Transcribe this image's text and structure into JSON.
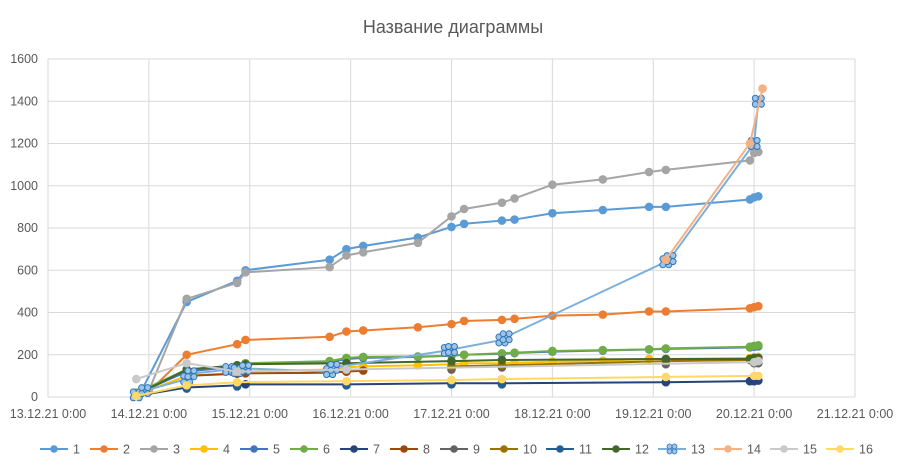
{
  "chart_data": {
    "type": "scatter",
    "title": "Название диаграммы",
    "xlabel": "",
    "ylabel": "",
    "xlim": [
      "13.12.21 0:00",
      "21.12.21 0:00"
    ],
    "ylim": [
      0,
      1600
    ],
    "x_ticks": [
      "13.12.21 0:00",
      "14.12.21 0:00",
      "15.12.21 0:00",
      "16.12.21 0:00",
      "17.12.21 0:00",
      "18.12.21 0:00",
      "19.12.21 0:00",
      "20.12.21 0:00",
      "21.12.21 0:00"
    ],
    "y_ticks": [
      0,
      200,
      400,
      600,
      800,
      1000,
      1200,
      1400,
      1600
    ],
    "grid": true,
    "legend_position": "bottom",
    "series": [
      {
        "name": "1",
        "color": "#5b9bd5",
        "marker": "circle",
        "line": true,
        "x": [
          "13.12.21 21:00",
          "13.12.21 22:00",
          "14.12.21 09:00",
          "14.12.21 21:00",
          "14.12.21 23:00",
          "15.12.21 19:00",
          "15.12.21 23:00",
          "16.12.21 03:00",
          "16.12.21 16:00",
          "17.12.21 00:00",
          "17.12.21 03:00",
          "17.12.21 12:00",
          "17.12.21 15:00",
          "18.12.21 00:00",
          "18.12.21 12:00",
          "18.12.21 23:00",
          "19.12.21 03:00",
          "19.12.21 23:00",
          "20.12.21 00:00",
          "20.12.21 01:00"
        ],
        "y": [
          15,
          20,
          450,
          550,
          600,
          650,
          700,
          715,
          755,
          805,
          820,
          835,
          840,
          870,
          885,
          900,
          900,
          935,
          945,
          950
        ]
      },
      {
        "name": "2",
        "color": "#ed7d31",
        "marker": "circle",
        "line": true,
        "x": [
          "13.12.21 21:00",
          "14.12.21 00:00",
          "14.12.21 09:00",
          "14.12.21 21:00",
          "14.12.21 23:00",
          "15.12.21 19:00",
          "15.12.21 23:00",
          "16.12.21 03:00",
          "16.12.21 16:00",
          "17.12.21 00:00",
          "17.12.21 03:00",
          "17.12.21 12:00",
          "17.12.21 15:00",
          "18.12.21 00:00",
          "18.12.21 12:00",
          "18.12.21 23:00",
          "19.12.21 03:00",
          "19.12.21 23:00",
          "20.12.21 00:00",
          "20.12.21 01:00"
        ],
        "y": [
          15,
          25,
          200,
          250,
          270,
          285,
          310,
          315,
          330,
          345,
          360,
          365,
          370,
          385,
          390,
          405,
          405,
          420,
          425,
          430
        ]
      },
      {
        "name": "3",
        "color": "#a5a5a5",
        "marker": "circle",
        "line": true,
        "x": [
          "13.12.21 21:00",
          "14.12.21 00:00",
          "14.12.21 09:00",
          "14.12.21 21:00",
          "14.12.21 23:00",
          "15.12.21 19:00",
          "15.12.21 23:00",
          "16.12.21 03:00",
          "16.12.21 16:00",
          "17.12.21 00:00",
          "17.12.21 03:00",
          "17.12.21 12:00",
          "17.12.21 15:00",
          "18.12.21 00:00",
          "18.12.21 12:00",
          "18.12.21 23:00",
          "19.12.21 03:00",
          "19.12.21 23:00",
          "20.12.21 00:00",
          "20.12.21 01:00"
        ],
        "y": [
          20,
          30,
          465,
          540,
          590,
          615,
          670,
          685,
          730,
          855,
          890,
          920,
          940,
          1005,
          1030,
          1065,
          1075,
          1120,
          1155,
          1160
        ]
      },
      {
        "name": "4",
        "color": "#ffc000",
        "marker": "circle",
        "line": true,
        "x": [
          "13.12.21 21:00",
          "14.12.21 09:00",
          "14.12.21 21:00",
          "14.12.21 23:00",
          "15.12.21 19:00",
          "15.12.21 23:00",
          "16.12.21 03:00",
          "16.12.21 16:00",
          "17.12.21 00:00",
          "17.12.21 03:00",
          "17.12.21 12:00",
          "17.12.21 15:00",
          "18.12.21 00:00",
          "18.12.21 12:00",
          "18.12.21 23:00",
          "19.12.21 03:00",
          "19.12.21 23:00",
          "20.12.21 00:00",
          "20.12.21 01:00"
        ],
        "y": [
          10,
          100,
          115,
          120,
          130,
          140,
          145,
          150,
          155,
          160,
          160,
          162,
          167,
          172,
          180,
          180,
          185,
          188,
          190
        ]
      },
      {
        "name": "5",
        "color": "#4472c4",
        "marker": "circle",
        "line": true,
        "x": [
          "13.12.21 21:00",
          "14.12.21 09:00",
          "14.12.21 21:00",
          "14.12.21 23:00",
          "15.12.21 19:00",
          "15.12.21 23:00",
          "16.12.21 03:00",
          "16.12.21 16:00",
          "17.12.21 00:00",
          "17.12.21 03:00",
          "17.12.21 12:00",
          "17.12.21 15:00",
          "18.12.21 00:00",
          "18.12.21 12:00",
          "18.12.21 23:00",
          "19.12.21 03:00",
          "19.12.21 23:00",
          "20.12.21 00:00",
          "20.12.21 01:00"
        ],
        "y": [
          15,
          120,
          145,
          155,
          165,
          180,
          185,
          190,
          195,
          200,
          205,
          208,
          215,
          220,
          225,
          228,
          235,
          238,
          240
        ]
      },
      {
        "name": "6",
        "color": "#70ad47",
        "marker": "circle",
        "line": true,
        "x": [
          "13.12.21 21:00",
          "14.12.21 09:00",
          "14.12.21 21:00",
          "14.12.21 23:00",
          "15.12.21 19:00",
          "15.12.21 23:00",
          "16.12.21 03:00",
          "16.12.21 16:00",
          "17.12.21 00:00",
          "17.12.21 03:00",
          "17.12.21 12:00",
          "17.12.21 15:00",
          "18.12.21 00:00",
          "18.12.21 12:00",
          "18.12.21 23:00",
          "19.12.21 03:00",
          "19.12.21 23:00",
          "20.12.21 00:00",
          "20.12.21 01:00"
        ],
        "y": [
          20,
          130,
          150,
          160,
          170,
          185,
          190,
          192,
          195,
          200,
          207,
          210,
          218,
          222,
          225,
          230,
          238,
          242,
          245
        ]
      },
      {
        "name": "7",
        "color": "#264478",
        "marker": "circle",
        "line": true,
        "x": [
          "13.12.21 21:00",
          "14.12.21 09:00",
          "14.12.21 21:00",
          "14.12.21 23:00",
          "15.12.21 23:00",
          "17.12.21 00:00",
          "17.12.21 12:00",
          "19.12.21 03:00",
          "19.12.21 23:00",
          "20.12.21 00:00",
          "20.12.21 01:00"
        ],
        "y": [
          5,
          45,
          55,
          60,
          60,
          65,
          65,
          70,
          75,
          75,
          78
        ]
      },
      {
        "name": "8",
        "color": "#9e480e",
        "marker": "circle",
        "line": true,
        "x": [
          "14.12.21 09:00",
          "14.12.21 21:00",
          "14.12.21 23:00",
          "15.12.21 19:00",
          "15.12.21 23:00",
          "16.12.21 03:00"
        ],
        "y": [
          100,
          110,
          112,
          115,
          120,
          125
        ]
      },
      {
        "name": "9",
        "color": "#636363",
        "marker": "circle",
        "line": false,
        "x": [
          "17.12.21 00:00",
          "17.12.21 12:00",
          "19.12.21 03:00",
          "20.12.21 00:00",
          "20.12.21 01:00"
        ],
        "y": [
          130,
          140,
          155,
          160,
          160
        ]
      },
      {
        "name": "10",
        "color": "#997300",
        "marker": "circle",
        "line": true,
        "x": [
          "17.12.21 00:00",
          "17.12.21 12:00",
          "19.12.21 03:00",
          "19.12.21 23:00",
          "20.12.21 00:00",
          "20.12.21 01:00"
        ],
        "y": [
          145,
          150,
          170,
          175,
          178,
          180
        ]
      },
      {
        "name": "11",
        "color": "#255e91",
        "marker": "circle",
        "line": false,
        "x": [
          "13.12.21 21:00",
          "14.12.21 09:00",
          "14.12.21 21:00",
          "15.12.21 23:00",
          "17.12.21 00:00",
          "17.12.21 12:00"
        ],
        "y": [
          5,
          40,
          50,
          55,
          60,
          60
        ]
      },
      {
        "name": "12",
        "color": "#43682b",
        "marker": "circle",
        "line": true,
        "x": [
          "13.12.21 21:00",
          "14.12.21 09:00",
          "14.12.21 21:00",
          "14.12.21 23:00",
          "15.12.21 23:00",
          "17.12.21 00:00",
          "17.12.21 12:00",
          "19.12.21 03:00",
          "19.12.21 23:00",
          "20.12.21 00:00",
          "20.12.21 01:00"
        ],
        "y": [
          10,
          130,
          150,
          155,
          160,
          170,
          175,
          180,
          180,
          185,
          185
        ]
      },
      {
        "name": "13",
        "color": "#7cafdd",
        "marker": "cross",
        "line": true,
        "x": [
          "13.12.21 21:00",
          "13.12.21 23:00",
          "14.12.21 09:00",
          "14.12.21 10:00",
          "14.12.21 19:00",
          "14.12.21 21:00",
          "14.12.21 23:00",
          "15.12.21 19:00",
          "15.12.21 20:00",
          "16.12.21 23:00",
          "17.12.21 00:00",
          "17.12.21 12:00",
          "17.12.21 13:00",
          "19.12.21 03:00",
          "19.12.21 04:00",
          "20.12.21 00:00",
          "20.12.21 01:00"
        ],
        "y": [
          10,
          30,
          85,
          110,
          130,
          125,
          135,
          120,
          140,
          220,
          225,
          270,
          285,
          640,
          655,
          1200,
          1400
        ]
      },
      {
        "name": "14",
        "color": "#f4b183",
        "marker": "circle",
        "line": true,
        "x": [
          "19.12.21 03:00",
          "19.12.21 23:00",
          "20.12.21 02:00"
        ],
        "y": [
          650,
          1200,
          1460
        ]
      },
      {
        "name": "15",
        "color": "#c9c9c9",
        "marker": "circle",
        "line": true,
        "x": [
          "13.12.21 21:00",
          "14.12.21 09:00",
          "14.12.21 21:00",
          "15.12.21 23:00",
          "20.12.21 00:00",
          "20.12.21 01:00"
        ],
        "y": [
          85,
          160,
          120,
          130,
          165,
          170
        ]
      },
      {
        "name": "16",
        "color": "#ffd966",
        "marker": "circle",
        "line": true,
        "x": [
          "13.12.21 21:00",
          "14.12.21 09:00",
          "14.12.21 21:00",
          "15.12.21 23:00",
          "17.12.21 00:00",
          "17.12.21 12:00",
          "19.12.21 03:00",
          "20.12.21 00:00",
          "20.12.21 01:00"
        ],
        "y": [
          5,
          55,
          70,
          75,
          80,
          85,
          95,
          100,
          100
        ]
      }
    ]
  }
}
